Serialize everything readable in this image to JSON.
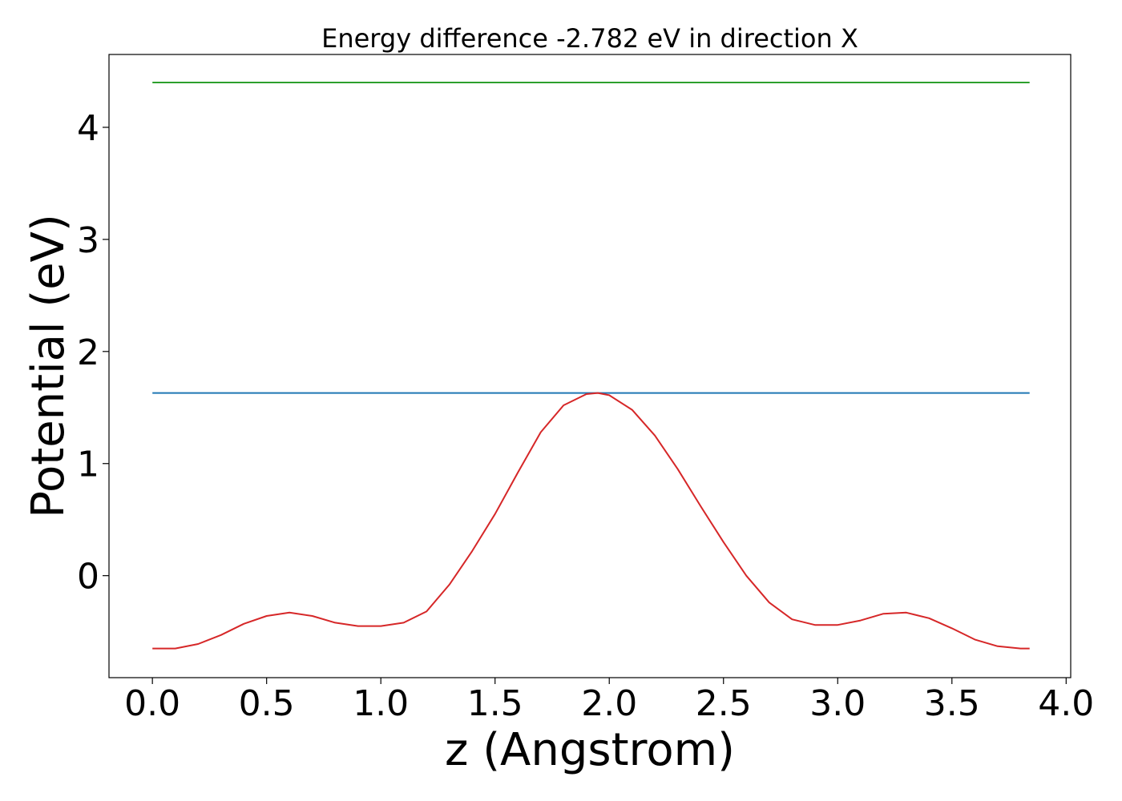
{
  "chart_data": {
    "type": "line",
    "title": "Energy difference -2.782 eV in direction X",
    "xlabel": "z (Angstrom)",
    "ylabel": "Potential (eV)",
    "xlim": [
      -0.19,
      4.02
    ],
    "ylim": [
      -0.91,
      4.65
    ],
    "xticks": [
      0.0,
      0.5,
      1.0,
      1.5,
      2.0,
      2.5,
      3.0,
      3.5,
      4.0
    ],
    "xtick_labels": [
      "0.0",
      "0.5",
      "1.0",
      "1.5",
      "2.0",
      "2.5",
      "3.0",
      "3.5",
      "4.0"
    ],
    "yticks": [
      0,
      1,
      2,
      3,
      4
    ],
    "ytick_labels": [
      "0",
      "1",
      "2",
      "3",
      "4"
    ],
    "grid": false,
    "series": [
      {
        "color": "#2ca02c",
        "style": "solid",
        "x": [
          0.0,
          3.84
        ],
        "y": [
          4.4,
          4.4
        ]
      },
      {
        "color": "#1f77b4",
        "style": "solid",
        "x": [
          0.0,
          3.84
        ],
        "y": [
          1.63,
          1.63
        ]
      },
      {
        "color": "#d62728",
        "style": "solid",
        "x": [
          0.0,
          0.1,
          0.2,
          0.3,
          0.4,
          0.5,
          0.6,
          0.7,
          0.8,
          0.9,
          1.0,
          1.1,
          1.2,
          1.3,
          1.4,
          1.5,
          1.6,
          1.7,
          1.8,
          1.9,
          1.95,
          2.0,
          2.1,
          2.2,
          2.3,
          2.4,
          2.5,
          2.6,
          2.7,
          2.8,
          2.9,
          3.0,
          3.1,
          3.2,
          3.3,
          3.4,
          3.5,
          3.6,
          3.7,
          3.8,
          3.84
        ],
        "y": [
          -0.65,
          -0.65,
          -0.61,
          -0.53,
          -0.43,
          -0.36,
          -0.33,
          -0.36,
          -0.42,
          -0.45,
          -0.45,
          -0.42,
          -0.32,
          -0.08,
          0.22,
          0.55,
          0.92,
          1.28,
          1.52,
          1.62,
          1.63,
          1.61,
          1.48,
          1.25,
          0.95,
          0.62,
          0.3,
          0.0,
          -0.24,
          -0.39,
          -0.44,
          -0.44,
          -0.4,
          -0.34,
          -0.33,
          -0.38,
          -0.47,
          -0.57,
          -0.63,
          -0.65,
          -0.65
        ]
      }
    ]
  }
}
